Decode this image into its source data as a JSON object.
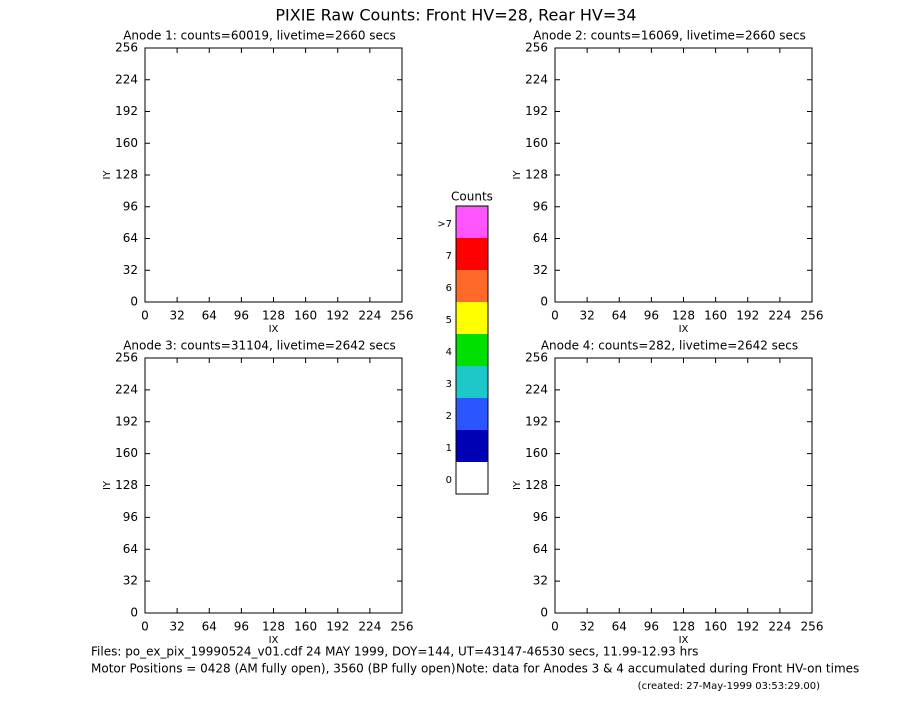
{
  "title": "PIXIE Raw Counts:  Front HV=28, Rear HV=34",
  "chart_data": [
    {
      "type": "heatmap",
      "title": "Anode 1: counts=60019, livetime=2660 secs",
      "xlabel": "IX",
      "ylabel": "IY",
      "xlim": [
        0,
        256
      ],
      "ylim": [
        0,
        256
      ],
      "xticks": [
        0,
        32,
        64,
        96,
        128,
        160,
        192,
        224,
        256
      ],
      "yticks": [
        0,
        32,
        64,
        96,
        128,
        160,
        192,
        224,
        256
      ]
    },
    {
      "type": "heatmap",
      "title": "Anode 2: counts=16069, livetime=2660 secs",
      "xlabel": "IX",
      "ylabel": "IY",
      "xlim": [
        0,
        256
      ],
      "ylim": [
        0,
        256
      ],
      "xticks": [
        0,
        32,
        64,
        96,
        128,
        160,
        192,
        224,
        256
      ],
      "yticks": [
        0,
        32,
        64,
        96,
        128,
        160,
        192,
        224,
        256
      ]
    },
    {
      "type": "heatmap",
      "title": "Anode 3: counts=31104, livetime=2642 secs",
      "xlabel": "IX",
      "ylabel": "IY",
      "xlim": [
        0,
        256
      ],
      "ylim": [
        0,
        256
      ],
      "xticks": [
        0,
        32,
        64,
        96,
        128,
        160,
        192,
        224,
        256
      ],
      "yticks": [
        0,
        32,
        64,
        96,
        128,
        160,
        192,
        224,
        256
      ]
    },
    {
      "type": "heatmap",
      "title": "Anode 4: counts=282, livetime=2642 secs",
      "xlabel": "IX",
      "ylabel": "IY",
      "xlim": [
        0,
        256
      ],
      "ylim": [
        0,
        256
      ],
      "xticks": [
        0,
        32,
        64,
        96,
        128,
        160,
        192,
        224,
        256
      ],
      "yticks": [
        0,
        32,
        64,
        96,
        128,
        160,
        192,
        224,
        256
      ]
    }
  ],
  "colorbar": {
    "title": "Counts",
    "labels": [
      "0",
      "1",
      "2",
      "3",
      "4",
      "5",
      "6",
      "7",
      ">7"
    ],
    "colors": [
      "#ffffff",
      "#0000b4",
      "#2a55ff",
      "#1ec8c8",
      "#00e000",
      "#ffff00",
      "#ff6a2a",
      "#ff0000",
      "#ff55ff"
    ]
  },
  "footer": {
    "files": "Files: po_ex_pix_19990524_v01.cdf   24 MAY 1999, DOY=144, UT=43147-46530 secs, 11.99-12.93 hrs",
    "motor": "Motor Positions = 0428 (AM fully open), 3560 (BP fully open)",
    "note": "Note: data for Anodes 3 & 4 accumulated during Front HV-on times",
    "created": "(created: 27-May-1999 03:53:29.00)"
  }
}
